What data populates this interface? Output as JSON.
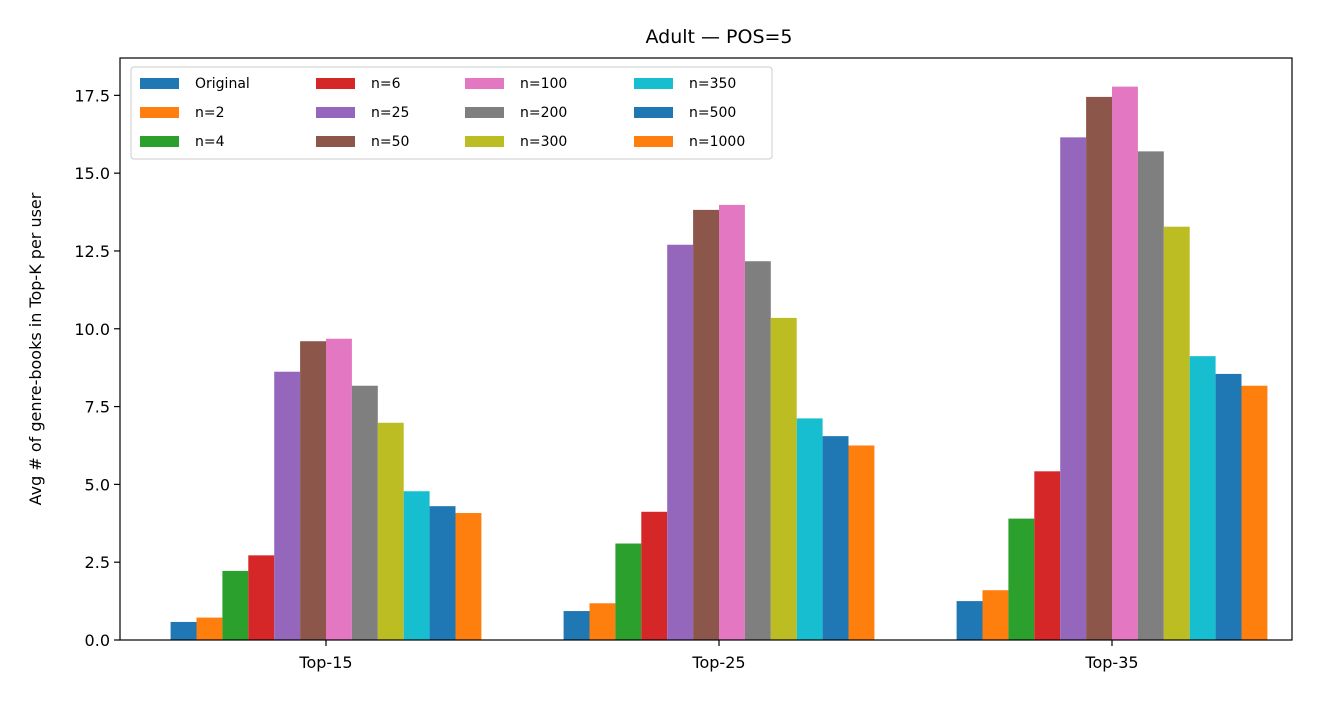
{
  "chart_data": {
    "type": "bar",
    "title": "Adult — POS=5",
    "xlabel": "",
    "ylabel": "Avg # of genre-books in Top-K per user",
    "categories": [
      "Top-15",
      "Top-25",
      "Top-35"
    ],
    "ylim": [
      0,
      18.7
    ],
    "yticks": [
      "0.0",
      "2.5",
      "5.0",
      "7.5",
      "10.0",
      "12.5",
      "15.0",
      "17.5"
    ],
    "legend_position": "upper-left",
    "legend_columns": 4,
    "grid": false,
    "series": [
      {
        "name": "Original",
        "color": "#1f77b4",
        "values": [
          0.58,
          0.93,
          1.25
        ]
      },
      {
        "name": "n=2",
        "color": "#ff7f0e",
        "values": [
          0.72,
          1.18,
          1.6
        ]
      },
      {
        "name": "n=4",
        "color": "#2ca02c",
        "values": [
          2.22,
          3.1,
          3.9
        ]
      },
      {
        "name": "n=6",
        "color": "#d62728",
        "values": [
          2.72,
          4.12,
          5.42
        ]
      },
      {
        "name": "n=25",
        "color": "#9467bd",
        "values": [
          8.62,
          12.7,
          16.15
        ]
      },
      {
        "name": "n=50",
        "color": "#8c564b",
        "values": [
          9.6,
          13.82,
          17.45
        ]
      },
      {
        "name": "n=100",
        "color": "#e377c2",
        "values": [
          9.68,
          13.98,
          17.78
        ]
      },
      {
        "name": "n=200",
        "color": "#7f7f7f",
        "values": [
          8.17,
          12.17,
          15.7
        ]
      },
      {
        "name": "n=300",
        "color": "#bcbd22",
        "values": [
          6.98,
          10.35,
          13.28
        ]
      },
      {
        "name": "n=350",
        "color": "#17becf",
        "values": [
          4.78,
          7.12,
          9.12
        ]
      },
      {
        "name": "n=500",
        "color": "#1f77b4",
        "values": [
          4.3,
          6.55,
          8.55
        ]
      },
      {
        "name": "n=1000",
        "color": "#ff7f0e",
        "values": [
          4.08,
          6.25,
          8.17
        ]
      }
    ]
  }
}
